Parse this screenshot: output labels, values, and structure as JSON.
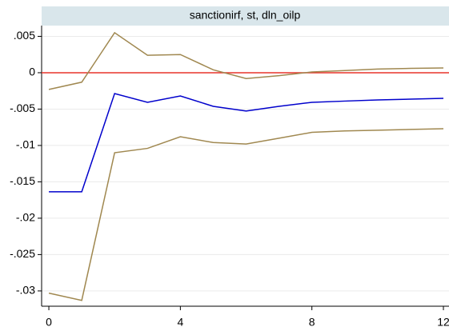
{
  "chart_data": {
    "type": "line",
    "title": "sanctionirf, st, dln_oilp",
    "x": [
      0,
      1,
      2,
      3,
      4,
      5,
      6,
      7,
      8,
      9,
      10,
      11,
      12
    ],
    "series": [
      {
        "color": "#a08850",
        "values": [
          -0.0023,
          -0.0013,
          0.0055,
          0.0024,
          0.0025,
          0.0004,
          -0.0008,
          -0.0004,
          0.0001,
          0.0003,
          0.0005,
          0.0006,
          0.00066
        ]
      },
      {
        "color": "#0000cc",
        "values": [
          -0.01637,
          -0.01637,
          -0.00286,
          -0.00407,
          -0.00319,
          -0.00462,
          -0.00527,
          -0.00462,
          -0.00407,
          -0.0039,
          -0.00374,
          -0.00363,
          -0.00352
        ]
      },
      {
        "color": "#a08850",
        "values": [
          -0.0303,
          -0.0313,
          -0.011,
          -0.0104,
          -0.0088,
          -0.0096,
          -0.0098,
          -0.009,
          -0.0082,
          -0.008,
          -0.0079,
          -0.0078,
          -0.0077
        ]
      }
    ],
    "reference_line": {
      "value": 0,
      "color": "#e8332a"
    },
    "xlim": [
      -0.22,
      12.17
    ],
    "xticks": [
      0,
      4,
      8,
      12
    ],
    "ylim": [
      -0.0321,
      0.00648
    ],
    "yticks": [
      {
        "value": 0.005,
        "label": ".005"
      },
      0,
      {
        "value": -0.005,
        "label": "-.005"
      },
      {
        "value": -0.01,
        "label": "-.01"
      },
      {
        "value": -0.015,
        "label": "-.015"
      },
      {
        "value": -0.02,
        "label": "-.02"
      },
      {
        "value": -0.025,
        "label": "-.025"
      },
      {
        "value": -0.03,
        "label": "-.03"
      }
    ],
    "grid": true
  }
}
